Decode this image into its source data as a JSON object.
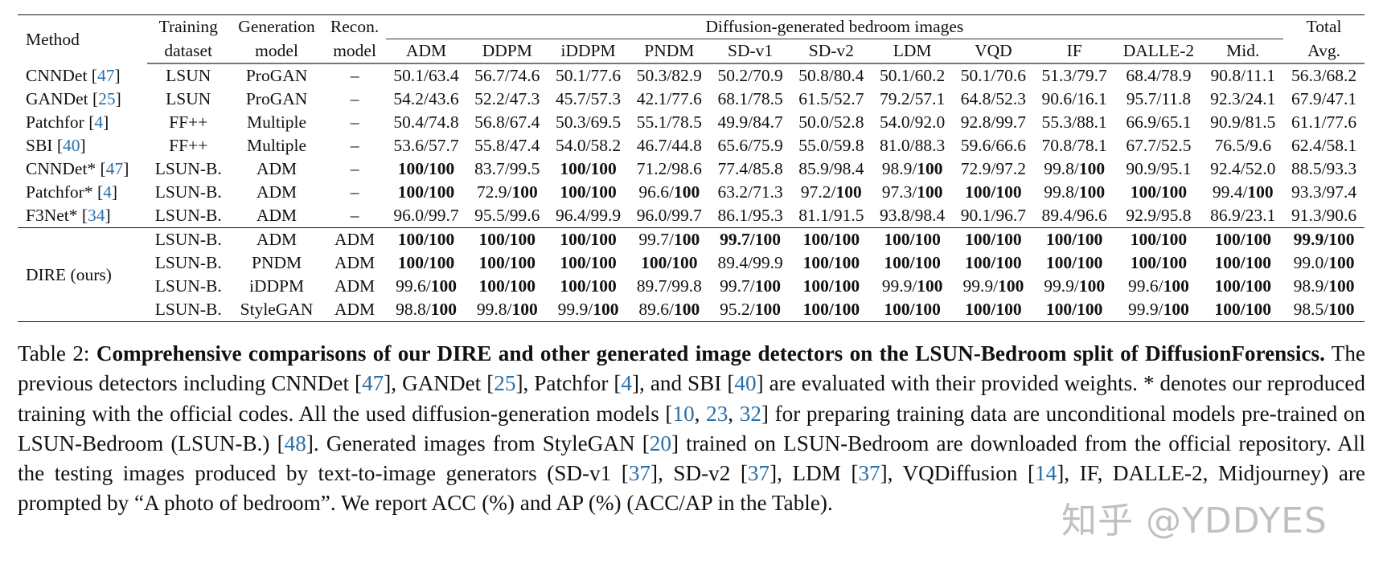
{
  "table": {
    "headers": {
      "method": "Method",
      "training_dataset": [
        "Training",
        "dataset"
      ],
      "generation_model": [
        "Generation",
        "model"
      ],
      "recon_model": [
        "Recon.",
        "model"
      ],
      "group_title": "Diffusion-generated bedroom images",
      "columns": [
        "ADM",
        "DDPM",
        "iDDPM",
        "PNDM",
        "SD-v1",
        "SD-v2",
        "LDM",
        "VQD",
        "IF",
        "DALLE-2",
        "Mid."
      ],
      "total": [
        "Total",
        "Avg."
      ]
    },
    "baseline_rows": [
      {
        "method": "CNNDet",
        "ref": "47",
        "train": "LSUN",
        "gen": "ProGAN",
        "recon": "–",
        "values": [
          "50.1/63.4",
          "56.7/74.6",
          "50.1/77.6",
          "50.3/82.9",
          "50.2/70.9",
          "50.8/80.4",
          "50.1/60.2",
          "50.1/70.6",
          "51.3/79.7",
          "68.4/78.9",
          "90.8/11.1"
        ],
        "total": "56.3/68.2"
      },
      {
        "method": "GANDet",
        "ref": "25",
        "train": "LSUN",
        "gen": "ProGAN",
        "recon": "–",
        "values": [
          "54.2/43.6",
          "52.2/47.3",
          "45.7/57.3",
          "42.1/77.6",
          "68.1/78.5",
          "61.5/52.7",
          "79.2/57.1",
          "64.8/52.3",
          "90.6/16.1",
          "95.7/11.8",
          "92.3/24.1"
        ],
        "total": "67.9/47.1"
      },
      {
        "method": "Patchfor",
        "ref": "4",
        "train": "FF++",
        "gen": "Multiple",
        "recon": "–",
        "values": [
          "50.4/74.8",
          "56.8/67.4",
          "50.3/69.5",
          "55.1/78.5",
          "49.9/84.7",
          "50.0/52.8",
          "54.0/92.0",
          "92.8/99.7",
          "55.3/88.1",
          "66.9/65.1",
          "90.9/81.5"
        ],
        "total": "61.1/77.6"
      },
      {
        "method": "SBI",
        "ref": "40",
        "train": "FF++",
        "gen": "Multiple",
        "recon": "–",
        "values": [
          "53.6/57.7",
          "55.8/47.4",
          "54.0/58.2",
          "46.7/44.8",
          "65.6/75.9",
          "55.0/59.8",
          "81.0/88.3",
          "59.6/66.6",
          "70.8/78.1",
          "67.7/52.5",
          "76.5/9.6"
        ],
        "total": "62.4/58.1"
      },
      {
        "method": "CNNDet*",
        "ref": "47",
        "train": "LSUN-B.",
        "gen": "ADM",
        "recon": "–",
        "values": [
          "100/100",
          "83.7/99.5",
          "100/100",
          "71.2/98.6",
          "77.4/85.8",
          "85.9/98.4",
          "98.9/100",
          "72.9/97.2",
          "99.8/100",
          "90.9/95.1",
          "92.4/52.0"
        ],
        "total": "88.5/93.3"
      },
      {
        "method": "Patchfor*",
        "ref": "4",
        "train": "LSUN-B.",
        "gen": "ADM",
        "recon": "–",
        "values": [
          "100/100",
          "72.9/100",
          "100/100",
          "96.6/100",
          "63.2/71.3",
          "97.2/100",
          "97.3/100",
          "100/100",
          "99.8/100",
          "100/100",
          "99.4/100"
        ],
        "total": "93.3/97.4"
      },
      {
        "method": "F3Net*",
        "ref": "34",
        "train": "LSUN-B.",
        "gen": "ADM",
        "recon": "–",
        "values": [
          "96.0/99.7",
          "95.5/99.6",
          "96.4/99.9",
          "96.0/99.7",
          "86.1/95.3",
          "81.1/91.5",
          "93.8/98.4",
          "90.1/96.7",
          "89.4/96.6",
          "92.9/95.8",
          "86.9/23.1"
        ],
        "total": "91.3/90.6"
      }
    ],
    "dire_method": "DIRE (ours)",
    "dire_rows": [
      {
        "train": "LSUN-B.",
        "gen": "ADM",
        "recon": "ADM",
        "values": [
          "100/100",
          "100/100",
          "100/100",
          "99.7/100",
          "99.7/100",
          "100/100",
          "100/100",
          "100/100",
          "100/100",
          "100/100",
          "100/100"
        ],
        "total": "99.9/100"
      },
      {
        "train": "LSUN-B.",
        "gen": "PNDM",
        "recon": "ADM",
        "values": [
          "100/100",
          "100/100",
          "100/100",
          "100/100",
          "89.4/99.9",
          "100/100",
          "100/100",
          "100/100",
          "100/100",
          "100/100",
          "100/100"
        ],
        "total": "99.0/100"
      },
      {
        "train": "LSUN-B.",
        "gen": "iDDPM",
        "recon": "ADM",
        "values": [
          "99.6/100",
          "100/100",
          "100/100",
          "89.7/99.8",
          "99.7/100",
          "100/100",
          "99.9/100",
          "99.9/100",
          "99.9/100",
          "99.6/100",
          "100/100"
        ],
        "total": "98.9/100"
      },
      {
        "train": "LSUN-B.",
        "gen": "StyleGAN",
        "recon": "ADM",
        "values": [
          "98.8/100",
          "99.8/100",
          "99.9/100",
          "89.6/100",
          "95.2/100",
          "100/100",
          "100/100",
          "100/100",
          "100/100",
          "99.9/100",
          "100/100"
        ],
        "total": "98.5/100"
      }
    ],
    "bold_mode_notes": "Cells: '100/100' fully bold; 'x/100' bold only on the 100; DIRE-ADM row SD-v1 '99.7/100' and Total '99.9/100' fully bold"
  },
  "caption": {
    "label": "Table 2:",
    "bold_title": "Comprehensive comparisons of our DIRE and other generated image detectors on the LSUN-Bedroom split of DiffusionForensics.",
    "segments": [
      {
        "t": " The previous detectors including CNNDet ["
      },
      {
        "r": "47"
      },
      {
        "t": "], GANDet ["
      },
      {
        "r": "25"
      },
      {
        "t": "], Patchfor ["
      },
      {
        "r": "4"
      },
      {
        "t": "], and SBI ["
      },
      {
        "r": "40"
      },
      {
        "t": "] are evaluated with their provided weights.  * denotes our reproduced training with the official codes. All the used diffusion-generation models ["
      },
      {
        "r": "10"
      },
      {
        "t": ", "
      },
      {
        "r": "23"
      },
      {
        "t": ", "
      },
      {
        "r": "32"
      },
      {
        "t": "] for preparing training data are unconditional models pre-trained on LSUN-Bedroom (LSUN-B.) ["
      },
      {
        "r": "48"
      },
      {
        "t": "]. Generated images from StyleGAN ["
      },
      {
        "r": "20"
      },
      {
        "t": "] trained on LSUN-Bedroom are downloaded from the official repository.  All the testing images produced by text-to-image generators (SD-v1 ["
      },
      {
        "r": "37"
      },
      {
        "t": "], SD-v2 ["
      },
      {
        "r": "37"
      },
      {
        "t": "], LDM ["
      },
      {
        "r": "37"
      },
      {
        "t": "], VQDiffusion ["
      },
      {
        "r": "14"
      },
      {
        "t": "], IF, DALLE-2, Midjourney) are prompted by “A photo of bedroom”. We report ACC (%) and AP (%) (ACC/AP in the Table)."
      }
    ]
  },
  "watermark": "知乎 @YDDYES"
}
